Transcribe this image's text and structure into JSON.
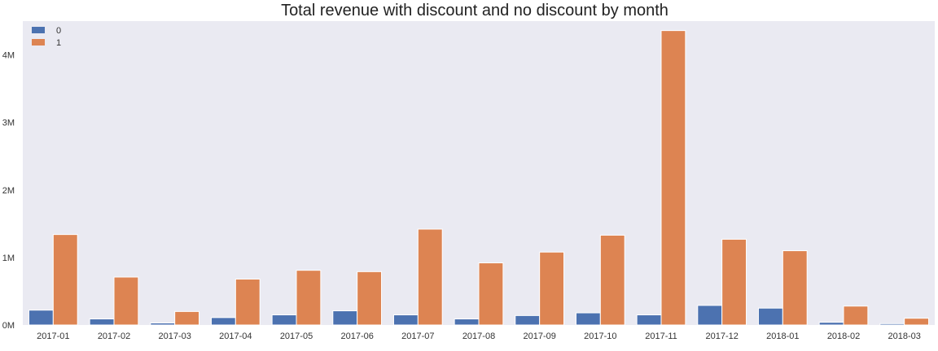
{
  "chart_data": {
    "type": "bar",
    "title": "Total revenue with discount and no discount by month",
    "xlabel": "",
    "ylabel": "",
    "categories": [
      "2017-01",
      "2017-02",
      "2017-03",
      "2017-04",
      "2017-05",
      "2017-06",
      "2017-07",
      "2017-08",
      "2017-09",
      "2017-10",
      "2017-11",
      "2017-12",
      "2018-01",
      "2018-02",
      "2018-03"
    ],
    "series": [
      {
        "name": "0",
        "color": "#4c72b0",
        "values": [
          220000,
          90000,
          30000,
          110000,
          150000,
          210000,
          150000,
          90000,
          140000,
          180000,
          150000,
          290000,
          250000,
          40000,
          20000
        ]
      },
      {
        "name": "1",
        "color": "#dd8452",
        "values": [
          1340000,
          710000,
          200000,
          680000,
          810000,
          790000,
          1420000,
          920000,
          1080000,
          1330000,
          4360000,
          1270000,
          1100000,
          280000,
          100000
        ]
      }
    ],
    "ylim": [
      0,
      4500000
    ],
    "yticks": [
      0,
      1000000,
      2000000,
      3000000,
      4000000
    ],
    "ytick_labels": [
      "0M",
      "1M",
      "2M",
      "3M",
      "4M"
    ],
    "grid": false,
    "legend_position": "top-left",
    "background_color": "#eaeaf2"
  }
}
